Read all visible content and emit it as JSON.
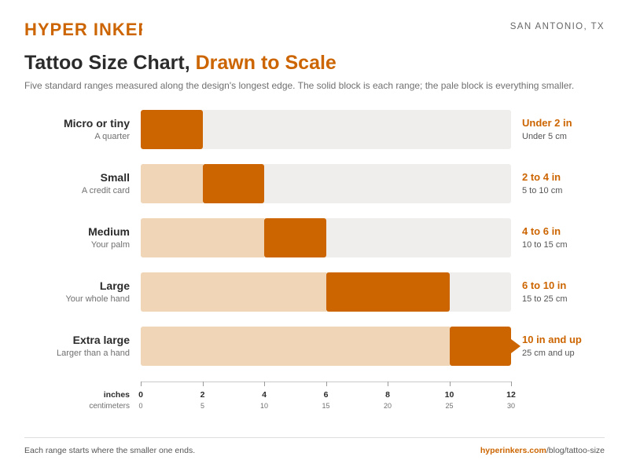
{
  "brand": {
    "logo_text": "HYPER INKERS",
    "location": "SAN ANTONIO, TX"
  },
  "header": {
    "title_main": "Tattoo Size Chart, ",
    "title_accent": "Drawn to Scale",
    "subtitle": "Five standard ranges measured along the design's longest edge. The solid block is each range; the pale block is everything smaller."
  },
  "colors": {
    "accent": "#cc6500",
    "pale": "#f0d5b7",
    "track": "#efeeed",
    "text": "#2b2b2b"
  },
  "chart_data": {
    "type": "bar",
    "orientation": "horizontal",
    "categories": [
      "Micro or tiny",
      "Small",
      "Medium",
      "Large",
      "Extra large"
    ],
    "category_notes": [
      "A quarter",
      "A credit card",
      "Your palm",
      "Your whole hand",
      "Larger than a hand"
    ],
    "ranges_in": [
      [
        0,
        2
      ],
      [
        2,
        4
      ],
      [
        4,
        6
      ],
      [
        6,
        10
      ],
      [
        10,
        12
      ]
    ],
    "open_ended": [
      false,
      false,
      false,
      false,
      true
    ],
    "range_labels_in": [
      "Under 2 in",
      "2 to 4 in",
      "4 to 6 in",
      "6 to 10 in",
      "10 in and up"
    ],
    "range_labels_cm": [
      "Under 5 cm",
      "5 to 10 cm",
      "10 to 15 cm",
      "15 to 25 cm",
      "25 cm and up"
    ],
    "xlim": [
      0,
      12
    ],
    "xticks_in": [
      "0",
      "2",
      "4",
      "6",
      "8",
      "10",
      "12"
    ],
    "xticks_cm": [
      "0",
      "5",
      "10",
      "15",
      "20",
      "25",
      "30"
    ],
    "xlabel": "inches",
    "xlabel_secondary": "centimeters"
  },
  "footer": {
    "note": "Each range starts where the smaller one ends.",
    "url_domain": "hyperinkers.com",
    "url_path": "/blog/tattoo-size"
  }
}
